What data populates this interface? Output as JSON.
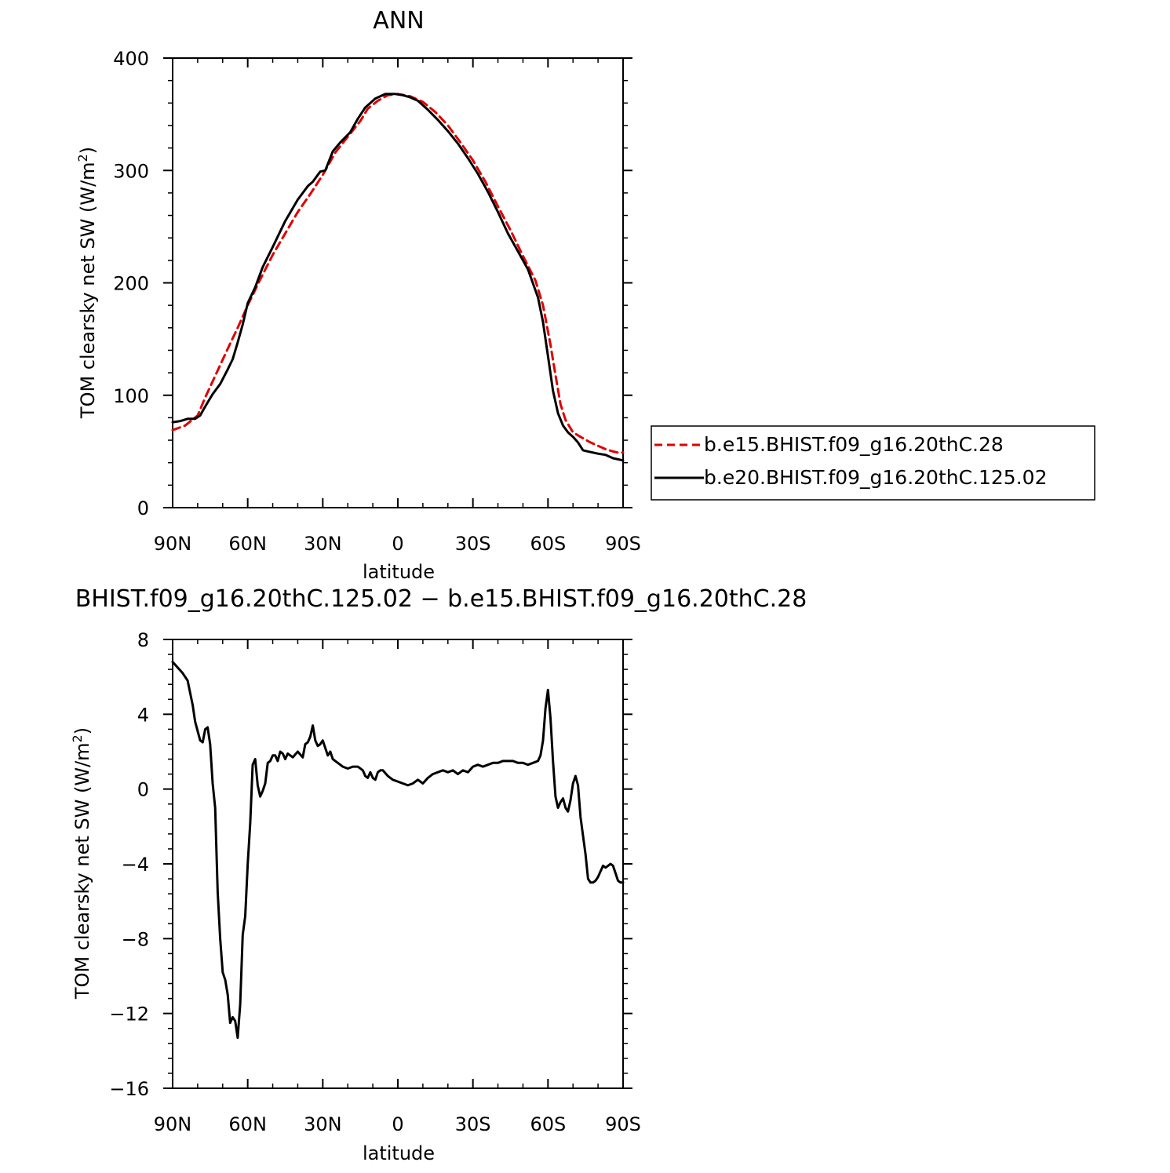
{
  "panel_top": {
    "title": "ANN",
    "ylabel_main": "TOM clearsky net SW (W/m",
    "ylabel_sup": "2",
    "ylabel_end": ")",
    "xlabel": "latitude"
  },
  "panel_bottom": {
    "title": "BHIST.f09_g16.20thC.125.02 − b.e15.BHIST.f09_g16.20thC.28",
    "ylabel_main": "TOM clearsky net SW (W/m",
    "ylabel_sup": "2",
    "ylabel_end": ")",
    "xlabel": "latitude"
  },
  "legend": {
    "items": [
      {
        "label": "b.e15.BHIST.f09_g16.20thC.28",
        "color": "#e00000",
        "style": "dashed"
      },
      {
        "label": "b.e20.BHIST.f09_g16.20thC.125.02",
        "color": "#000000",
        "style": "solid"
      }
    ]
  },
  "chart_data": [
    {
      "type": "line",
      "title": "ANN",
      "xlabel": "latitude",
      "ylabel": "TOM clearsky net SW (W/m2)",
      "xlim": [
        90,
        -90
      ],
      "ylim": [
        0,
        400
      ],
      "xticks": [
        90,
        60,
        30,
        0,
        -30,
        -60,
        -90
      ],
      "xtick_labels": [
        "90N",
        "60N",
        "30N",
        "0",
        "30S",
        "60S",
        "90S"
      ],
      "yticks": [
        0,
        100,
        200,
        300,
        400
      ],
      "ytick_labels": [
        "0",
        "100",
        "200",
        "300",
        "400"
      ],
      "grid": false,
      "legend_position": "right",
      "series": [
        {
          "name": "b.e15.BHIST.f09_g16.20thC.28",
          "color": "#e00000",
          "dash": "dashed",
          "x": [
            90,
            85,
            80,
            77,
            72,
            67,
            64,
            60,
            55,
            50,
            45,
            40,
            35,
            30,
            25,
            20,
            15,
            12,
            8,
            4,
            0,
            -5,
            -10,
            -15,
            -20,
            -25,
            -30,
            -35,
            -40,
            -45,
            -50,
            -55,
            -58,
            -61,
            -63,
            -65,
            -67,
            -70,
            -73,
            -77,
            -80,
            -83,
            -86,
            -88,
            -90
          ],
          "y": [
            69,
            73,
            82,
            98,
            122,
            146,
            160,
            180,
            203,
            225,
            244,
            263,
            279,
            296,
            316,
            330,
            344,
            355,
            362,
            367,
            368,
            366,
            361,
            352,
            340,
            325,
            309,
            290,
            268,
            247,
            224,
            202,
            180,
            145,
            118,
            92,
            78,
            67,
            63,
            58,
            55,
            52,
            50,
            49,
            49
          ]
        },
        {
          "name": "b.e20.BHIST.f09_g16.20thC.125.02",
          "color": "#000000",
          "dash": "solid",
          "x": [
            90,
            87,
            84,
            81,
            79,
            77,
            74,
            71,
            68,
            66,
            64,
            62,
            60,
            57,
            54,
            50,
            45,
            40,
            36,
            34,
            31,
            29,
            26,
            23,
            19,
            16,
            13,
            9,
            5,
            1,
            -2,
            -5,
            -8,
            -12,
            -16,
            -20,
            -24,
            -28,
            -32,
            -36,
            -40,
            -44,
            -48,
            -52,
            -56,
            -58,
            -60,
            -62,
            -64,
            -66,
            -68,
            -70,
            -72,
            -74,
            -76,
            -78,
            -80,
            -83,
            -86,
            -88,
            -90
          ],
          "y": [
            76,
            77,
            79,
            79,
            82,
            90,
            101,
            110,
            123,
            132,
            147,
            163,
            182,
            196,
            214,
            232,
            255,
            274,
            286,
            290,
            299,
            300,
            317,
            325,
            334,
            346,
            356,
            364,
            368,
            368,
            367,
            365,
            362,
            354,
            345,
            335,
            324,
            311,
            297,
            281,
            263,
            244,
            228,
            212,
            187,
            165,
            135,
            104,
            84,
            73,
            67,
            63,
            58,
            51,
            50,
            49,
            48,
            47,
            44,
            43,
            42
          ]
        }
      ]
    },
    {
      "type": "line",
      "title": "BHIST.f09_g16.20thC.125.02 − b.e15.BHIST.f09_g16.20thC.28",
      "xlabel": "latitude",
      "ylabel": "TOM clearsky net SW (W/m2)",
      "xlim": [
        90,
        -90
      ],
      "ylim": [
        -16,
        8
      ],
      "xticks": [
        90,
        60,
        30,
        0,
        -30,
        -60,
        -90
      ],
      "xtick_labels": [
        "90N",
        "60N",
        "30N",
        "0",
        "30S",
        "60S",
        "90S"
      ],
      "yticks": [
        -16,
        -12,
        -8,
        -4,
        0,
        4,
        8
      ],
      "ytick_labels": [
        "−16",
        "−12",
        "−8",
        "−4",
        "0",
        "4",
        "8"
      ],
      "grid": false,
      "series": [
        {
          "color": "#000000",
          "dash": "solid",
          "x": [
            90,
            88,
            86,
            84,
            82,
            81,
            80,
            79,
            78,
            77,
            76,
            75,
            74,
            73,
            72,
            71,
            70,
            69,
            68,
            67,
            66,
            65,
            64,
            63,
            62,
            61,
            60,
            59,
            58,
            57,
            56,
            55,
            54,
            53,
            52,
            51,
            50,
            49,
            48,
            47,
            46,
            45,
            44,
            43,
            42,
            40,
            38,
            37,
            36,
            35,
            34,
            33,
            32,
            31,
            30,
            29,
            28,
            27,
            26,
            25,
            24,
            22,
            20,
            18,
            16,
            14,
            13,
            12,
            11,
            10,
            9,
            8,
            7,
            6,
            4,
            2,
            0,
            -2,
            -4,
            -6,
            -8,
            -10,
            -12,
            -14,
            -16,
            -18,
            -20,
            -22,
            -24,
            -26,
            -28,
            -30,
            -32,
            -34,
            -36,
            -38,
            -40,
            -42,
            -44,
            -46,
            -48,
            -50,
            -52,
            -54,
            -56,
            -57,
            -58,
            -59,
            -60,
            -61,
            -62,
            -63,
            -64,
            -65,
            -66,
            -67,
            -68,
            -69,
            -70,
            -71,
            -72,
            -73,
            -74,
            -75,
            -76,
            -77,
            -78,
            -79,
            -80,
            -81,
            -82,
            -83,
            -84,
            -85,
            -86,
            -87,
            -88,
            -89,
            -90
          ],
          "y": [
            6.8,
            6.5,
            6.2,
            5.8,
            4.5,
            3.6,
            3.1,
            2.6,
            2.5,
            3.2,
            3.3,
            2.4,
            0.3,
            -1.0,
            -5.5,
            -8.0,
            -9.8,
            -10.2,
            -11.0,
            -12.5,
            -12.2,
            -12.4,
            -13.3,
            -11.5,
            -7.8,
            -6.8,
            -4.0,
            -1.8,
            1.3,
            1.6,
            0.2,
            -0.4,
            -0.1,
            0.3,
            1.4,
            1.5,
            1.8,
            1.8,
            1.5,
            2.0,
            1.9,
            1.6,
            1.9,
            1.8,
            1.7,
            2.0,
            1.7,
            2.4,
            2.5,
            2.8,
            3.4,
            2.6,
            2.3,
            2.4,
            2.6,
            2.2,
            1.8,
            2.0,
            1.6,
            1.5,
            1.4,
            1.2,
            1.1,
            1.2,
            1.2,
            1.0,
            0.7,
            0.6,
            0.9,
            0.6,
            0.5,
            0.9,
            1.0,
            1.0,
            0.7,
            0.5,
            0.4,
            0.3,
            0.2,
            0.3,
            0.5,
            0.3,
            0.6,
            0.8,
            0.9,
            1.0,
            0.9,
            1.0,
            0.8,
            1.0,
            0.9,
            1.2,
            1.3,
            1.2,
            1.3,
            1.4,
            1.4,
            1.5,
            1.5,
            1.5,
            1.4,
            1.4,
            1.3,
            1.4,
            1.5,
            1.8,
            2.6,
            4.3,
            5.3,
            3.8,
            1.5,
            -0.4,
            -1.0,
            -0.7,
            -0.5,
            -1.0,
            -1.2,
            -0.6,
            0.3,
            0.7,
            0.2,
            -1.5,
            -2.5,
            -3.5,
            -4.8,
            -5.0,
            -5.0,
            -4.9,
            -4.7,
            -4.4,
            -4.1,
            -4.2,
            -4.1,
            -4.0,
            -4.1,
            -4.5,
            -4.9,
            -5.0,
            -5.0
          ]
        }
      ]
    }
  ]
}
